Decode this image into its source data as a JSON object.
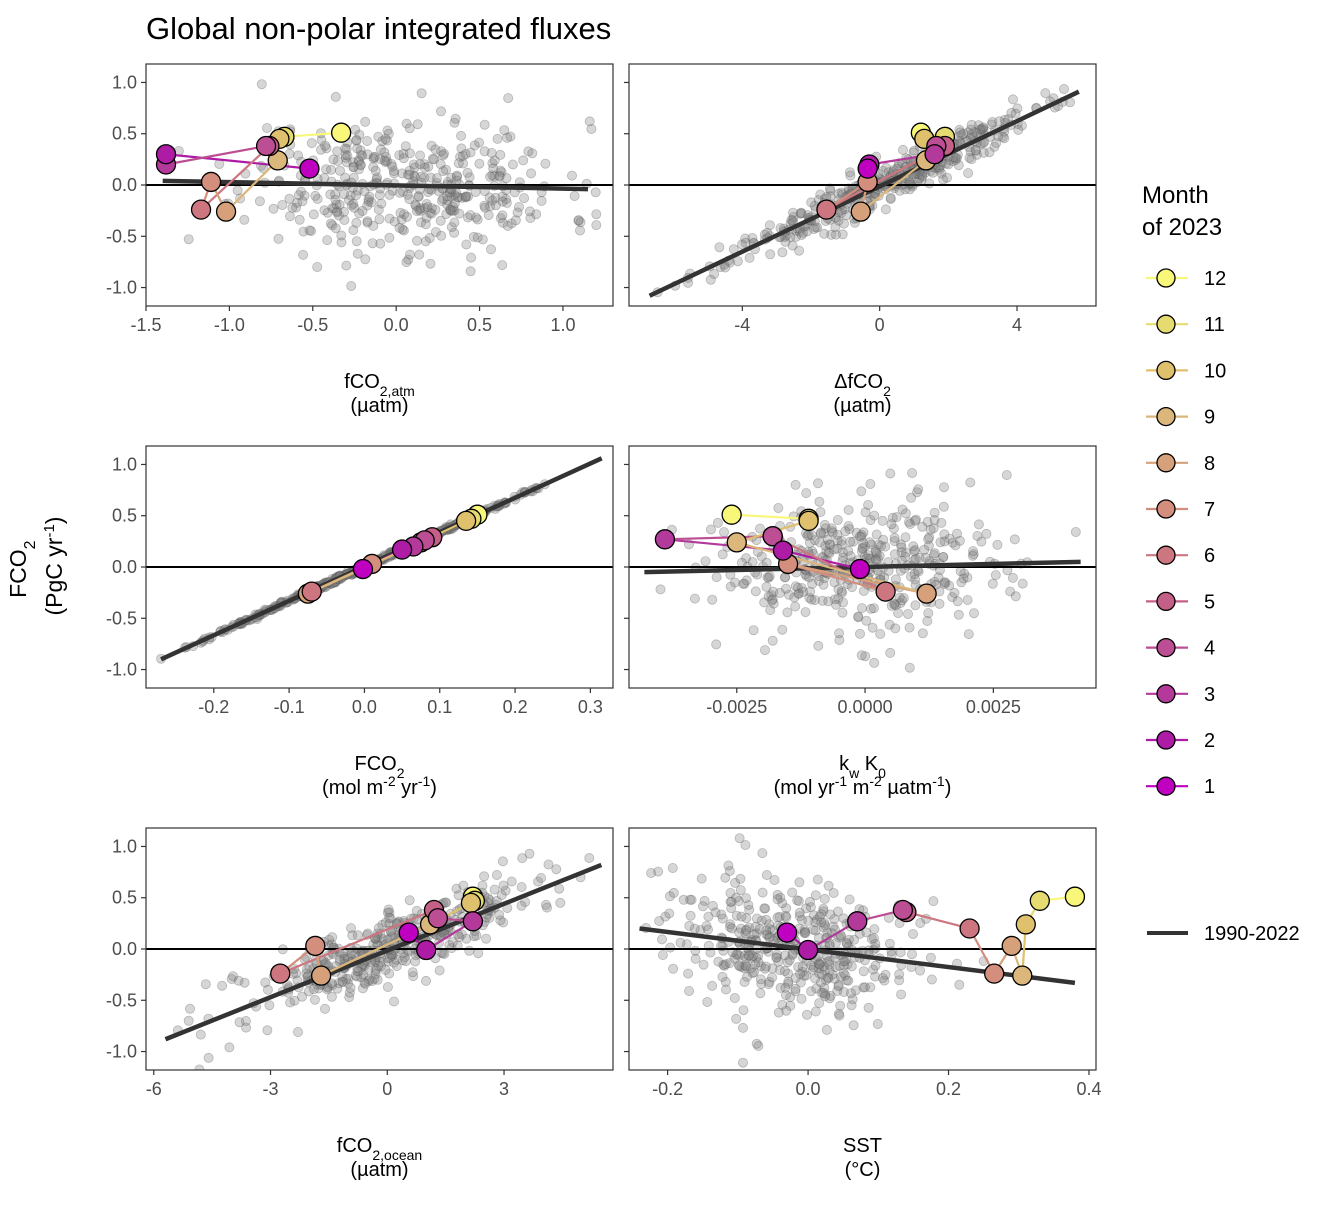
{
  "title": "Global non-polar integrated fluxes",
  "y_axis": {
    "label": "FCO",
    "sub": "2",
    "unit_pre": "(PgC yr",
    "unit_sup": "-1",
    "unit_post": ")"
  },
  "legend": {
    "title_line1": "Month",
    "title_line2": "of 2023",
    "months": [
      "12",
      "11",
      "10",
      "9",
      "8",
      "7",
      "6",
      "5",
      "4",
      "3",
      "2",
      "1"
    ],
    "trend_label": "1990-2022"
  },
  "colors": {
    "months": {
      "1": "#c000c0",
      "2": "#ae1ca6",
      "3": "#b33a9a",
      "4": "#bc4f93",
      "5": "#c46088",
      "6": "#cd7680",
      "7": "#d48e7e",
      "8": "#d6a07a",
      "9": "#dcb77c",
      "10": "#dfc06c",
      "11": "#e6db70",
      "12": "#f8f77a"
    },
    "scatter": "#7f7f7f",
    "trend": "#333333",
    "zero": "#000000"
  },
  "chart_data": [
    {
      "type": "scatter",
      "panel": "fco2_atm",
      "xlabel_main": "fCO",
      "xlabel_sub": "2,atm",
      "xlabel_unit": "(µatm)",
      "xlim": [
        -1.5,
        1.3
      ],
      "ylim": [
        -1.18,
        1.18
      ],
      "xticks": [
        -1.5,
        -1.0,
        -0.5,
        0.0,
        0.5,
        1.0
      ],
      "xtick_labels": [
        "-1.5",
        "-1.0",
        "-0.5",
        "0.0",
        "0.5",
        "1.0"
      ],
      "yticks": [
        -1.0,
        -0.5,
        0.0,
        0.5,
        1.0
      ],
      "ytick_labels": [
        "-1.0",
        "-0.5",
        "0.0",
        "0.5",
        "1.0"
      ],
      "trend": {
        "x": [
          -1.4,
          1.15
        ],
        "y": [
          0.04,
          -0.04
        ]
      },
      "cloud": {
        "n": 430,
        "x_mean": 0.05,
        "x_sd": 0.48,
        "x_min": -1.32,
        "x_max": 1.2,
        "mode": "uncorrelated",
        "slope": -0.03,
        "intercept": 0.0,
        "y_sd": 0.33,
        "seed": 11
      },
      "months_x": [
        -0.52,
        -1.38,
        -1.38,
        -0.78,
        -0.76,
        -1.17,
        -1.11,
        -1.02,
        -0.71,
        -0.7,
        -0.67,
        -0.33
      ],
      "months_y": [
        0.16,
        0.3,
        0.2,
        0.38,
        0.38,
        -0.24,
        0.03,
        -0.26,
        0.24,
        0.45,
        0.47,
        0.51
      ]
    },
    {
      "type": "scatter",
      "panel": "delta_fco2",
      "xlabel_main": "ΔfCO",
      "xlabel_sub": "2",
      "xlabel_unit": "(µatm)",
      "xlim": [
        -7.3,
        6.3
      ],
      "ylim": [
        -1.18,
        1.18
      ],
      "xticks": [
        -4,
        0,
        4
      ],
      "xtick_labels": [
        "-4",
        "0",
        "4"
      ],
      "yticks": [
        -1.0,
        -0.5,
        0.0,
        0.5,
        1.0
      ],
      "ytick_labels": [
        "",
        "",
        "",
        "",
        ""
      ],
      "trend": {
        "x": [
          -6.7,
          5.8
        ],
        "y": [
          -1.08,
          0.91
        ]
      },
      "cloud": {
        "n": 430,
        "x_mean": 0.0,
        "x_sd": 2.2,
        "x_min": -6.8,
        "x_max": 5.8,
        "mode": "correlated",
        "slope": 0.158,
        "intercept": -0.015,
        "y_sd": 0.1,
        "seed": 23
      },
      "months_x": [
        -0.35,
        -0.3,
        1.6,
        1.65,
        1.9,
        -1.55,
        -0.35,
        -0.55,
        1.35,
        1.3,
        1.9,
        1.2
      ],
      "months_y": [
        0.16,
        0.2,
        0.3,
        0.38,
        0.38,
        -0.24,
        0.03,
        -0.26,
        0.24,
        0.45,
        0.47,
        0.51
      ]
    },
    {
      "type": "scatter",
      "panel": "fco2_flux",
      "xlabel_main": "FCO",
      "xlabel_sub": "2",
      "xlabel_unit": "(mol m",
      "xlabel_unit_sup1": "-2",
      "xlabel_unit_mid": " yr",
      "xlabel_unit_sup2": "-1",
      "xlabel_unit_post": ")",
      "xlim": [
        -0.29,
        0.33
      ],
      "ylim": [
        -1.18,
        1.18
      ],
      "xticks": [
        -0.2,
        -0.1,
        0.0,
        0.1,
        0.2,
        0.3
      ],
      "xtick_labels": [
        "-0.2",
        "-0.1",
        "0.0",
        "0.1",
        "0.2",
        "0.3"
      ],
      "yticks": [
        -1.0,
        -0.5,
        0.0,
        0.5,
        1.0
      ],
      "ytick_labels": [
        "-1.0",
        "-0.5",
        "0.0",
        "0.5",
        "1.0"
      ],
      "trend": {
        "x": [
          -0.27,
          0.315
        ],
        "y": [
          -0.9,
          1.06
        ]
      },
      "cloud": {
        "n": 430,
        "x_mean": 0.0,
        "x_sd": 0.1,
        "x_min": -0.27,
        "x_max": 0.315,
        "mode": "correlated",
        "slope": 3.35,
        "intercept": 0.005,
        "y_sd": 0.012,
        "seed": 37
      },
      "months_x": [
        -0.002,
        0.05,
        0.065,
        0.08,
        0.09,
        -0.07,
        0.01,
        -0.075,
        0.075,
        0.135,
        0.142,
        0.15
      ],
      "months_y": [
        -0.02,
        0.17,
        0.2,
        0.26,
        0.29,
        -0.24,
        0.03,
        -0.26,
        0.24,
        0.45,
        0.47,
        0.51
      ]
    },
    {
      "type": "scatter",
      "panel": "kw_k0",
      "xlabel_main": "k",
      "xlabel_sub": "w",
      "xlabel_main2": " K",
      "xlabel_sub2": "0",
      "xlabel_unit": "(mol yr",
      "xlabel_unit_sup1": "-1",
      "xlabel_unit_mid": " m",
      "xlabel_unit_sup2": "-2",
      "xlabel_unit_mid2": " µatm",
      "xlabel_unit_sup3": "-1",
      "xlabel_unit_post": ")",
      "xlim": [
        -0.0046,
        0.0045
      ],
      "ylim": [
        -1.18,
        1.18
      ],
      "xticks": [
        -0.0025,
        0.0,
        0.0025
      ],
      "xtick_labels": [
        "-0.0025",
        "0.0000",
        "0.0025"
      ],
      "yticks": [
        -1.0,
        -0.5,
        0.0,
        0.5,
        1.0
      ],
      "ytick_labels": [
        "",
        "",
        "",
        "",
        ""
      ],
      "trend": {
        "x": [
          -0.0043,
          0.0042
        ],
        "y": [
          -0.05,
          0.05
        ]
      },
      "cloud": {
        "n": 430,
        "x_mean": 0.0,
        "x_sd": 0.0015,
        "x_min": -0.0044,
        "x_max": 0.0043,
        "mode": "uncorrelated",
        "slope": 12.0,
        "intercept": 0.0,
        "y_sd": 0.33,
        "seed": 53
      },
      "months_x": [
        -0.0001,
        -0.0016,
        -0.0039,
        -0.0018,
        -0.0018,
        0.0004,
        -0.0015,
        0.0012,
        -0.0025,
        -0.0011,
        -0.0011,
        -0.0026
      ],
      "months_y": [
        -0.02,
        0.16,
        0.27,
        0.3,
        0.3,
        -0.24,
        0.03,
        -0.26,
        0.24,
        0.45,
        0.47,
        0.51
      ]
    },
    {
      "type": "scatter",
      "panel": "fco2_ocean",
      "xlabel_main": "fCO",
      "xlabel_sub": "2,ocean",
      "xlabel_unit": "(µatm)",
      "xlim": [
        -6.2,
        5.8
      ],
      "ylim": [
        -1.18,
        1.18
      ],
      "xticks": [
        -6,
        -3,
        0,
        3
      ],
      "xtick_labels": [
        "-6",
        "-3",
        "0",
        "3"
      ],
      "yticks": [
        -1.0,
        -0.5,
        0.0,
        0.5,
        1.0
      ],
      "ytick_labels": [
        "-1.0",
        "-0.5",
        "0.0",
        "0.5",
        "1.0"
      ],
      "trend": {
        "x": [
          -5.7,
          5.5
        ],
        "y": [
          -0.88,
          0.82
        ]
      },
      "cloud": {
        "n": 430,
        "x_mean": 0.0,
        "x_sd": 1.9,
        "x_min": -5.7,
        "x_max": 5.4,
        "mode": "correlated",
        "slope": 0.15,
        "intercept": 0.0,
        "y_sd": 0.17,
        "seed": 71
      },
      "months_x": [
        0.55,
        1.0,
        2.2,
        1.3,
        1.2,
        -2.75,
        -1.85,
        -1.7,
        1.1,
        2.15,
        2.25,
        2.2
      ],
      "months_y": [
        0.16,
        -0.01,
        0.27,
        0.3,
        0.38,
        -0.24,
        0.03,
        -0.26,
        0.24,
        0.45,
        0.47,
        0.51
      ]
    },
    {
      "type": "scatter",
      "panel": "sst",
      "xlabel_main": "SST",
      "xlabel_sub": "",
      "xlabel_unit": "(°C)",
      "xlim": [
        -0.255,
        0.41
      ],
      "ylim": [
        -1.18,
        1.18
      ],
      "xticks": [
        -0.2,
        0.0,
        0.2,
        0.4
      ],
      "xtick_labels": [
        "-0.2",
        "0.0",
        "0.2",
        "0.4"
      ],
      "yticks": [
        -1.0,
        -0.5,
        0.0,
        0.5,
        1.0
      ],
      "ytick_labels": [
        "",
        "",
        "",
        "",
        ""
      ],
      "trend": {
        "x": [
          -0.24,
          0.38
        ],
        "y": [
          0.2,
          -0.33
        ]
      },
      "cloud": {
        "n": 430,
        "x_mean": -0.02,
        "x_sd": 0.085,
        "x_min": -0.24,
        "x_max": 0.3,
        "mode": "uncorrelated",
        "slope": -0.85,
        "intercept": 0.0,
        "y_sd": 0.33,
        "seed": 89
      },
      "months_x": [
        -0.03,
        0.0,
        0.07,
        0.135,
        0.14,
        0.23,
        0.265,
        0.29,
        0.305,
        0.31,
        0.33,
        0.38
      ],
      "months_y": [
        0.16,
        -0.01,
        0.27,
        0.38,
        0.36,
        0.2,
        -0.24,
        0.03,
        -0.26,
        0.24,
        0.47,
        0.51
      ]
    }
  ]
}
